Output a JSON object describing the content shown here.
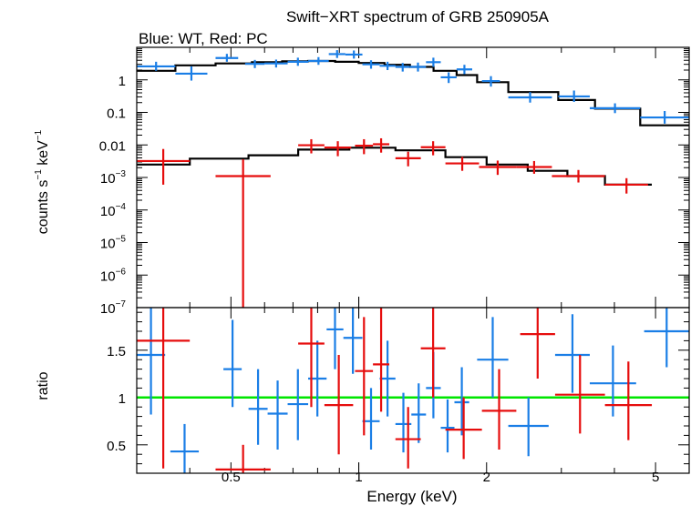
{
  "chart_data": {
    "type": "scatter",
    "title": "Swift−XRT spectrum of GRB 250905A",
    "subtitle": "Blue: WT, Red: PC",
    "xlabel": "Energy (keV)",
    "x_scale": "log",
    "xlim": [
      0.3,
      6.0
    ],
    "x_ticks": [
      0.5,
      1,
      2,
      5
    ],
    "x_tick_labels": [
      "0.5",
      "1",
      "2",
      "5"
    ],
    "colors": {
      "wt": "#1a7ee6",
      "pc": "#e60d0d",
      "model": "#000000",
      "unity": "#00e600"
    },
    "panels": {
      "spectrum": {
        "ylabel_parts": {
          "a": "counts s",
          "b": "−1",
          "c": " keV",
          "d": "−1"
        },
        "y_scale": "log",
        "ylim": [
          1e-07,
          10
        ],
        "y_ticks": [
          {
            "value": 1,
            "label": "1"
          },
          {
            "value": 0.1,
            "label": "0.1"
          },
          {
            "value": 0.01,
            "label": "0.01"
          },
          {
            "value": 0.001,
            "base": "10",
            "exp": "−3"
          },
          {
            "value": 0.0001,
            "base": "10",
            "exp": "−4"
          },
          {
            "value": 1e-05,
            "base": "10",
            "exp": "−5"
          },
          {
            "value": 1e-06,
            "base": "10",
            "exp": "−6"
          },
          {
            "value": 1e-07,
            "base": "10",
            "exp": "−7"
          }
        ],
        "series": [
          {
            "name": "WT",
            "color": "wt",
            "points": [
              {
                "x0": 0.3,
                "x1": 0.37,
                "y": 2.6,
                "ylo": 1.9,
                "yhi": 3.6
              },
              {
                "x0": 0.37,
                "x1": 0.44,
                "y": 1.55,
                "ylo": 0.95,
                "yhi": 2.6
              },
              {
                "x0": 0.46,
                "x1": 0.52,
                "y": 4.7,
                "ylo": 3.6,
                "yhi": 6.3
              },
              {
                "x0": 0.54,
                "x1": 0.6,
                "y": 3.1,
                "ylo": 2.3,
                "yhi": 4.1
              },
              {
                "x0": 0.6,
                "x1": 0.68,
                "y": 3.2,
                "ylo": 2.4,
                "yhi": 4.2
              },
              {
                "x0": 0.68,
                "x1": 0.76,
                "y": 3.6,
                "ylo": 2.7,
                "yhi": 4.8
              },
              {
                "x0": 0.76,
                "x1": 0.85,
                "y": 3.8,
                "ylo": 2.9,
                "yhi": 5.0
              },
              {
                "x0": 0.85,
                "x1": 0.93,
                "y": 6.2,
                "ylo": 4.7,
                "yhi": 8.2
              },
              {
                "x0": 0.93,
                "x1": 1.02,
                "y": 6.0,
                "ylo": 4.5,
                "yhi": 8.0
              },
              {
                "x0": 1.02,
                "x1": 1.12,
                "y": 3.0,
                "ylo": 2.2,
                "yhi": 4.0
              },
              {
                "x0": 1.12,
                "x1": 1.22,
                "y": 2.7,
                "ylo": 2.0,
                "yhi": 3.6
              },
              {
                "x0": 1.22,
                "x1": 1.32,
                "y": 2.5,
                "ylo": 1.8,
                "yhi": 3.3
              },
              {
                "x0": 1.32,
                "x1": 1.44,
                "y": 2.5,
                "ylo": 1.8,
                "yhi": 3.4
              },
              {
                "x0": 1.44,
                "x1": 1.56,
                "y": 3.5,
                "ylo": 2.5,
                "yhi": 4.8
              },
              {
                "x0": 1.56,
                "x1": 1.7,
                "y": 1.2,
                "ylo": 0.8,
                "yhi": 1.7
              },
              {
                "x0": 1.7,
                "x1": 1.85,
                "y": 2.1,
                "ylo": 1.5,
                "yhi": 2.9
              },
              {
                "x0": 1.95,
                "x1": 2.15,
                "y": 0.92,
                "ylo": 0.62,
                "yhi": 1.3
              },
              {
                "x0": 2.25,
                "x1": 2.85,
                "y": 0.29,
                "ylo": 0.2,
                "yhi": 0.42
              },
              {
                "x0": 2.95,
                "x1": 3.5,
                "y": 0.31,
                "ylo": 0.21,
                "yhi": 0.47
              },
              {
                "x0": 3.5,
                "x1": 4.6,
                "y": 0.135,
                "ylo": 0.095,
                "yhi": 0.19
              },
              {
                "x0": 4.6,
                "x1": 6.0,
                "y": 0.07,
                "ylo": 0.045,
                "yhi": 0.11
              }
            ]
          },
          {
            "name": "PC",
            "color": "pc",
            "points": [
              {
                "x0": 0.3,
                "x1": 0.4,
                "y": 0.0032,
                "ylo": 0.0006,
                "yhi": 0.0075
              },
              {
                "x0": 0.46,
                "x1": 0.62,
                "y": 0.0011,
                "ylo": 1e-07,
                "yhi": 0.0036
              },
              {
                "x0": 0.72,
                "x1": 0.83,
                "y": 0.0098,
                "ylo": 0.0055,
                "yhi": 0.015
              },
              {
                "x0": 0.83,
                "x1": 0.96,
                "y": 0.0083,
                "ylo": 0.0045,
                "yhi": 0.013
              },
              {
                "x0": 0.98,
                "x1": 1.08,
                "y": 0.0095,
                "ylo": 0.0052,
                "yhi": 0.015
              },
              {
                "x0": 1.08,
                "x1": 1.18,
                "y": 0.0105,
                "ylo": 0.0058,
                "yhi": 0.016
              },
              {
                "x0": 1.22,
                "x1": 1.4,
                "y": 0.0039,
                "ylo": 0.0022,
                "yhi": 0.0062
              },
              {
                "x0": 1.4,
                "x1": 1.6,
                "y": 0.0085,
                "ylo": 0.0048,
                "yhi": 0.013
              },
              {
                "x0": 1.6,
                "x1": 1.92,
                "y": 0.0027,
                "ylo": 0.0016,
                "yhi": 0.0043
              },
              {
                "x0": 1.92,
                "x1": 2.35,
                "y": 0.0021,
                "ylo": 0.0012,
                "yhi": 0.0033
              },
              {
                "x0": 2.35,
                "x1": 2.85,
                "y": 0.0021,
                "ylo": 0.0013,
                "yhi": 0.0032
              },
              {
                "x0": 2.85,
                "x1": 3.8,
                "y": 0.0011,
                "ylo": 0.0007,
                "yhi": 0.0017
              },
              {
                "x0": 3.8,
                "x1": 4.8,
                "y": 0.0006,
                "ylo": 0.00032,
                "yhi": 0.00095
              }
            ]
          }
        ],
        "models": [
          {
            "name": "WT model",
            "steps": [
              {
                "x0": 0.3,
                "x1": 0.37,
                "y": 1.9
              },
              {
                "x0": 0.37,
                "x1": 0.46,
                "y": 2.8
              },
              {
                "x0": 0.46,
                "x1": 0.56,
                "y": 3.2
              },
              {
                "x0": 0.56,
                "x1": 0.66,
                "y": 3.5
              },
              {
                "x0": 0.66,
                "x1": 0.76,
                "y": 3.7
              },
              {
                "x0": 0.76,
                "x1": 0.88,
                "y": 3.8
              },
              {
                "x0": 0.88,
                "x1": 1.0,
                "y": 3.6
              },
              {
                "x0": 1.0,
                "x1": 1.15,
                "y": 3.3
              },
              {
                "x0": 1.15,
                "x1": 1.32,
                "y": 2.9
              },
              {
                "x0": 1.32,
                "x1": 1.5,
                "y": 2.5
              },
              {
                "x0": 1.5,
                "x1": 1.7,
                "y": 1.9
              },
              {
                "x0": 1.7,
                "x1": 1.9,
                "y": 1.4
              },
              {
                "x0": 1.9,
                "x1": 2.25,
                "y": 0.85
              },
              {
                "x0": 2.25,
                "x1": 2.95,
                "y": 0.42
              },
              {
                "x0": 2.95,
                "x1": 3.6,
                "y": 0.24
              },
              {
                "x0": 3.6,
                "x1": 4.6,
                "y": 0.13
              },
              {
                "x0": 4.6,
                "x1": 6.0,
                "y": 0.04
              }
            ]
          },
          {
            "name": "PC model",
            "steps": [
              {
                "x0": 0.3,
                "x1": 0.4,
                "y": 0.0025
              },
              {
                "x0": 0.4,
                "x1": 0.55,
                "y": 0.0038
              },
              {
                "x0": 0.55,
                "x1": 0.72,
                "y": 0.0048
              },
              {
                "x0": 0.72,
                "x1": 0.95,
                "y": 0.0072
              },
              {
                "x0": 0.95,
                "x1": 1.22,
                "y": 0.0082
              },
              {
                "x0": 1.22,
                "x1": 1.6,
                "y": 0.0068
              },
              {
                "x0": 1.6,
                "x1": 2.0,
                "y": 0.0042
              },
              {
                "x0": 2.0,
                "x1": 2.5,
                "y": 0.0025
              },
              {
                "x0": 2.5,
                "x1": 3.1,
                "y": 0.0016
              },
              {
                "x0": 3.1,
                "x1": 3.8,
                "y": 0.0011
              },
              {
                "x0": 3.8,
                "x1": 4.9,
                "y": 0.0006
              }
            ]
          }
        ]
      },
      "ratio": {
        "ylabel": "ratio",
        "y_scale": "linear",
        "ylim": [
          0.2,
          1.95
        ],
        "y_ticks": [
          {
            "value": 0.5,
            "label": "0.5"
          },
          {
            "value": 1,
            "label": "1"
          },
          {
            "value": 1.5,
            "label": "1.5"
          }
        ],
        "unity_line": 1,
        "series": [
          {
            "name": "WT",
            "color": "wt",
            "points": [
              {
                "x0": 0.3,
                "x1": 0.35,
                "y": 1.45,
                "ylo": 0.82,
                "yhi": 1.95
              },
              {
                "x0": 0.36,
                "x1": 0.42,
                "y": 0.43,
                "ylo": 0.2,
                "yhi": 0.72
              },
              {
                "x0": 0.48,
                "x1": 0.53,
                "y": 1.3,
                "ylo": 0.9,
                "yhi": 1.82
              },
              {
                "x0": 0.55,
                "x1": 0.61,
                "y": 0.88,
                "ylo": 0.5,
                "yhi": 1.3
              },
              {
                "x0": 0.61,
                "x1": 0.68,
                "y": 0.83,
                "ylo": 0.45,
                "yhi": 1.18
              },
              {
                "x0": 0.68,
                "x1": 0.76,
                "y": 0.93,
                "ylo": 0.55,
                "yhi": 1.3
              },
              {
                "x0": 0.76,
                "x1": 0.84,
                "y": 1.2,
                "ylo": 0.8,
                "yhi": 1.6
              },
              {
                "x0": 0.84,
                "x1": 0.92,
                "y": 1.72,
                "ylo": 1.3,
                "yhi": 1.95
              },
              {
                "x0": 0.92,
                "x1": 1.02,
                "y": 1.63,
                "ylo": 1.25,
                "yhi": 1.95
              },
              {
                "x0": 1.02,
                "x1": 1.12,
                "y": 0.75,
                "ylo": 0.45,
                "yhi": 1.1
              },
              {
                "x0": 1.12,
                "x1": 1.22,
                "y": 1.2,
                "ylo": 0.8,
                "yhi": 1.6
              },
              {
                "x0": 1.22,
                "x1": 1.33,
                "y": 0.72,
                "ylo": 0.42,
                "yhi": 1.05
              },
              {
                "x0": 1.33,
                "x1": 1.44,
                "y": 0.82,
                "ylo": 0.52,
                "yhi": 1.15
              },
              {
                "x0": 1.44,
                "x1": 1.56,
                "y": 1.1,
                "ylo": 0.78,
                "yhi": 1.48
              },
              {
                "x0": 1.56,
                "x1": 1.68,
                "y": 0.68,
                "ylo": 0.42,
                "yhi": 0.98
              },
              {
                "x0": 1.68,
                "x1": 1.82,
                "y": 0.95,
                "ylo": 0.6,
                "yhi": 1.32
              },
              {
                "x0": 1.9,
                "x1": 2.25,
                "y": 1.4,
                "ylo": 1.0,
                "yhi": 1.85
              },
              {
                "x0": 2.25,
                "x1": 2.8,
                "y": 0.7,
                "ylo": 0.38,
                "yhi": 1.0
              },
              {
                "x0": 2.9,
                "x1": 3.5,
                "y": 1.45,
                "ylo": 1.05,
                "yhi": 1.88
              },
              {
                "x0": 3.5,
                "x1": 4.5,
                "y": 1.15,
                "ylo": 0.8,
                "yhi": 1.55
              },
              {
                "x0": 4.7,
                "x1": 6.0,
                "y": 1.7,
                "ylo": 1.32,
                "yhi": 1.95
              }
            ]
          },
          {
            "name": "PC",
            "color": "pc",
            "points": [
              {
                "x0": 0.3,
                "x1": 0.4,
                "y": 1.6,
                "ylo": 0.25,
                "yhi": 1.95
              },
              {
                "x0": 0.46,
                "x1": 0.62,
                "y": 0.24,
                "ylo": 0.2,
                "yhi": 0.5
              },
              {
                "x0": 0.72,
                "x1": 0.83,
                "y": 1.57,
                "ylo": 0.9,
                "yhi": 1.95
              },
              {
                "x0": 0.83,
                "x1": 0.97,
                "y": 0.92,
                "ylo": 0.4,
                "yhi": 1.45
              },
              {
                "x0": 0.98,
                "x1": 1.08,
                "y": 1.28,
                "ylo": 0.6,
                "yhi": 1.85
              },
              {
                "x0": 1.08,
                "x1": 1.18,
                "y": 1.35,
                "ylo": 0.85,
                "yhi": 1.95
              },
              {
                "x0": 1.22,
                "x1": 1.4,
                "y": 0.56,
                "ylo": 0.25,
                "yhi": 0.9
              },
              {
                "x0": 1.4,
                "x1": 1.6,
                "y": 1.52,
                "ylo": 1.0,
                "yhi": 1.95
              },
              {
                "x0": 1.6,
                "x1": 1.95,
                "y": 0.66,
                "ylo": 0.35,
                "yhi": 1.0
              },
              {
                "x0": 1.95,
                "x1": 2.35,
                "y": 0.86,
                "ylo": 0.45,
                "yhi": 1.3
              },
              {
                "x0": 2.4,
                "x1": 2.9,
                "y": 1.67,
                "ylo": 1.2,
                "yhi": 1.95
              },
              {
                "x0": 2.9,
                "x1": 3.8,
                "y": 1.03,
                "ylo": 0.62,
                "yhi": 1.45
              },
              {
                "x0": 3.8,
                "x1": 4.9,
                "y": 0.92,
                "ylo": 0.55,
                "yhi": 1.38
              }
            ]
          }
        ]
      }
    }
  }
}
